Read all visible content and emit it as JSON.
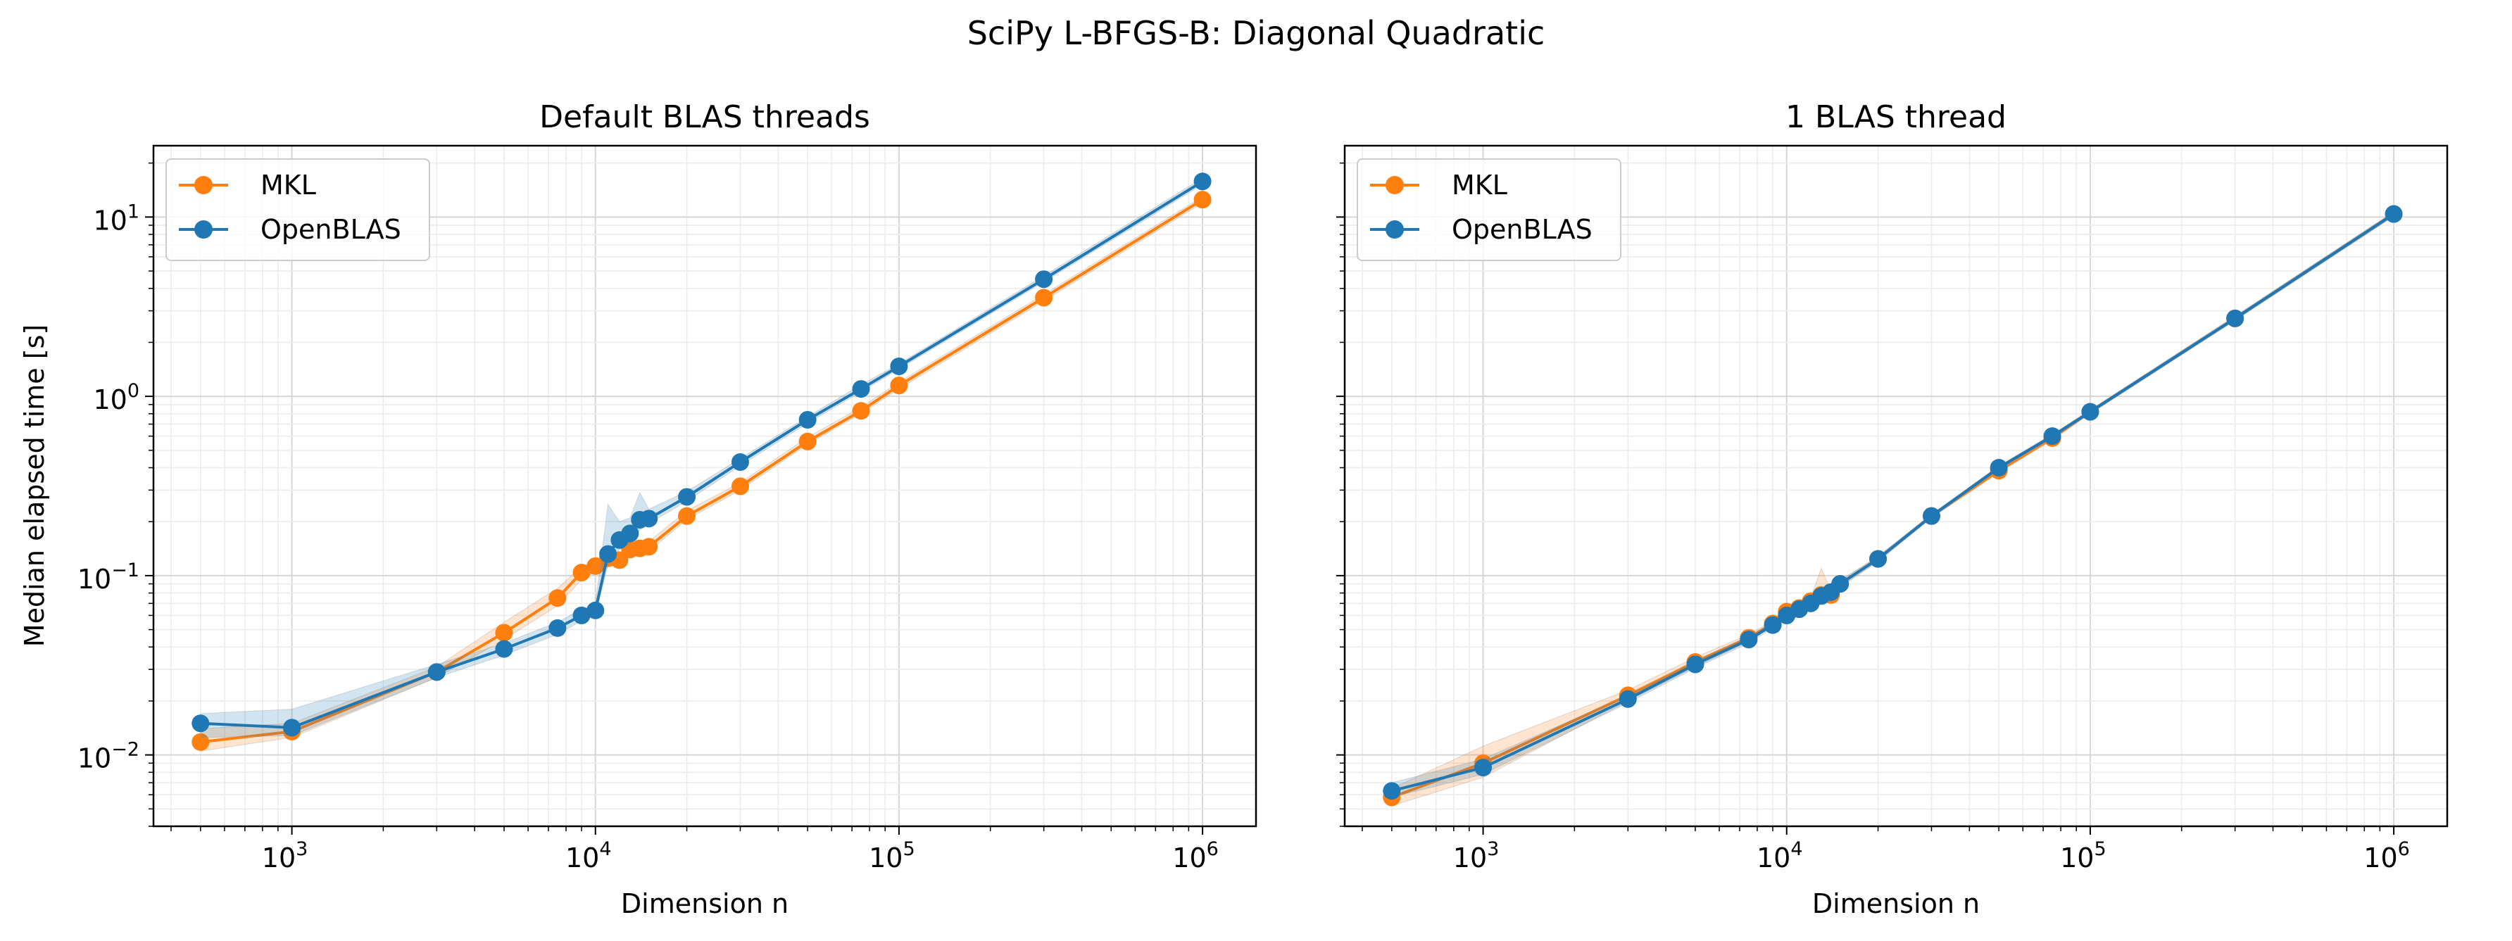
{
  "figure_title": "SciPy L-BFGS-B: Diagonal Quadratic",
  "colors": {
    "MKL": "#ff7f0e",
    "OpenBLAS": "#1f77b4",
    "grid": "#dcdcdc",
    "band": "#9a9a9a"
  },
  "chart_data": [
    {
      "type": "line",
      "title": "Default BLAS threads",
      "xlabel": "Dimension n",
      "ylabel": "Median elapsed time [s]",
      "xscale": "log",
      "yscale": "log",
      "xlim": [
        350,
        1500000
      ],
      "ylim": [
        0.004,
        25
      ],
      "grid": true,
      "legend_position": "upper-left",
      "x_tick_labels": [
        {
          "base": "10",
          "exp": "3"
        },
        {
          "base": "10",
          "exp": "4"
        },
        {
          "base": "10",
          "exp": "5"
        },
        {
          "base": "10",
          "exp": "6"
        }
      ],
      "y_tick_labels": [
        {
          "base": "10",
          "exp": "−2"
        },
        {
          "base": "10",
          "exp": "−1"
        },
        {
          "base": "10",
          "exp": "0"
        },
        {
          "base": "10",
          "exp": "1"
        }
      ],
      "series": [
        {
          "name": "MKL",
          "x": [
            500,
            1000,
            3000,
            5000,
            7500,
            9000,
            10000,
            11000,
            12000,
            13000,
            14000,
            15000,
            20000,
            30000,
            50000,
            75000,
            100000,
            300000,
            1000000
          ],
          "y": [
            0.0118,
            0.0135,
            0.029,
            0.048,
            0.075,
            0.104,
            0.113,
            0.125,
            0.122,
            0.14,
            0.142,
            0.145,
            0.215,
            0.315,
            0.56,
            0.83,
            1.15,
            3.55,
            12.5
          ],
          "band_low": [
            0.0105,
            0.0125,
            0.027,
            0.044,
            0.068,
            0.095,
            0.105,
            0.116,
            0.113,
            0.13,
            0.134,
            0.137,
            0.205,
            0.3,
            0.54,
            0.8,
            1.1,
            3.4,
            12.0
          ],
          "band_high": [
            0.014,
            0.015,
            0.031,
            0.055,
            0.085,
            0.112,
            0.122,
            0.135,
            0.132,
            0.152,
            0.153,
            0.155,
            0.23,
            0.33,
            0.59,
            0.87,
            1.2,
            3.7,
            13.0
          ]
        },
        {
          "name": "OpenBLAS",
          "x": [
            500,
            1000,
            3000,
            5000,
            7500,
            9000,
            10000,
            11000,
            12000,
            13000,
            14000,
            15000,
            20000,
            30000,
            50000,
            75000,
            100000,
            300000,
            1000000
          ],
          "y": [
            0.015,
            0.0142,
            0.029,
            0.039,
            0.051,
            0.06,
            0.064,
            0.132,
            0.158,
            0.172,
            0.205,
            0.208,
            0.275,
            0.43,
            0.74,
            1.1,
            1.47,
            4.5,
            15.8
          ],
          "band_low": [
            0.0125,
            0.0128,
            0.027,
            0.036,
            0.047,
            0.056,
            0.06,
            0.115,
            0.14,
            0.15,
            0.18,
            0.195,
            0.26,
            0.41,
            0.71,
            1.06,
            1.42,
            4.35,
            15.2
          ],
          "band_high": [
            0.017,
            0.018,
            0.032,
            0.042,
            0.055,
            0.065,
            0.07,
            0.25,
            0.2,
            0.21,
            0.29,
            0.235,
            0.295,
            0.45,
            0.77,
            1.16,
            1.52,
            4.7,
            16.5
          ]
        }
      ]
    },
    {
      "type": "line",
      "title": "1 BLAS thread",
      "xlabel": "Dimension n",
      "ylabel": "",
      "xscale": "log",
      "yscale": "log",
      "xlim": [
        350,
        1500000
      ],
      "ylim": [
        0.004,
        25
      ],
      "grid": true,
      "legend_position": "upper-left",
      "x_tick_labels": [
        {
          "base": "10",
          "exp": "3"
        },
        {
          "base": "10",
          "exp": "4"
        },
        {
          "base": "10",
          "exp": "5"
        },
        {
          "base": "10",
          "exp": "6"
        }
      ],
      "series": [
        {
          "name": "MKL",
          "x": [
            500,
            1000,
            3000,
            5000,
            7500,
            9000,
            10000,
            11000,
            12000,
            13000,
            14000,
            15000,
            20000,
            30000,
            50000,
            75000,
            100000,
            300000,
            1000000
          ],
          "y": [
            0.0058,
            0.009,
            0.0215,
            0.033,
            0.045,
            0.054,
            0.063,
            0.066,
            0.072,
            0.078,
            0.078,
            0.09,
            0.124,
            0.215,
            0.385,
            0.585,
            0.82,
            2.72,
            10.4
          ],
          "band_low": [
            0.0052,
            0.0075,
            0.02,
            0.031,
            0.043,
            0.052,
            0.06,
            0.063,
            0.069,
            0.074,
            0.074,
            0.086,
            0.12,
            0.21,
            0.375,
            0.57,
            0.8,
            2.65,
            10.1
          ],
          "band_high": [
            0.0065,
            0.0112,
            0.023,
            0.035,
            0.047,
            0.056,
            0.066,
            0.069,
            0.075,
            0.11,
            0.082,
            0.094,
            0.128,
            0.22,
            0.395,
            0.6,
            0.84,
            2.8,
            10.7
          ]
        },
        {
          "name": "OpenBLAS",
          "x": [
            500,
            1000,
            3000,
            5000,
            7500,
            9000,
            10000,
            11000,
            12000,
            13000,
            14000,
            15000,
            20000,
            30000,
            50000,
            75000,
            100000,
            300000,
            1000000
          ],
          "y": [
            0.0063,
            0.0085,
            0.0205,
            0.032,
            0.044,
            0.053,
            0.06,
            0.065,
            0.07,
            0.077,
            0.081,
            0.09,
            0.124,
            0.215,
            0.4,
            0.6,
            0.82,
            2.72,
            10.4
          ],
          "band_low": [
            0.0058,
            0.0078,
            0.0195,
            0.0305,
            0.042,
            0.051,
            0.058,
            0.063,
            0.068,
            0.074,
            0.078,
            0.087,
            0.12,
            0.21,
            0.39,
            0.585,
            0.8,
            2.65,
            10.1
          ],
          "band_high": [
            0.007,
            0.0095,
            0.0215,
            0.0335,
            0.046,
            0.055,
            0.062,
            0.067,
            0.073,
            0.08,
            0.085,
            0.094,
            0.128,
            0.22,
            0.41,
            0.615,
            0.84,
            2.8,
            10.7
          ]
        }
      ]
    }
  ]
}
